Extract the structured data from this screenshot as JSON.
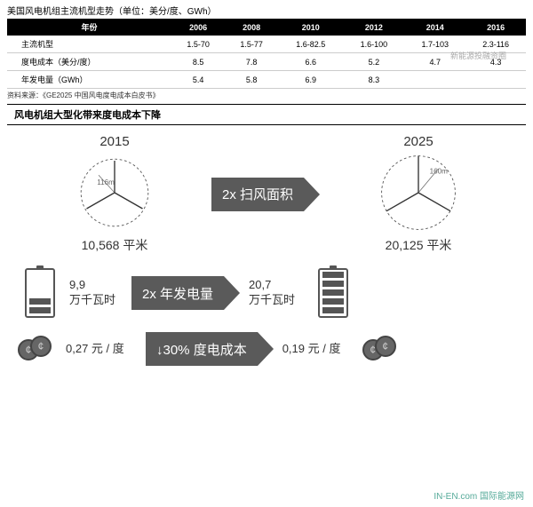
{
  "table": {
    "title": "美国风电机组主流机型走势（单位：美分/度、GWh）",
    "headers": [
      "年份",
      "2006",
      "2008",
      "2010",
      "2012",
      "2014",
      "2016"
    ],
    "rows": [
      [
        "主流机型",
        "1.5-70",
        "1.5-77",
        "1.6-82.5",
        "1.6-100",
        "1.7-103",
        "2.3-116"
      ],
      [
        "度电成本（美分/度）",
        "8.5",
        "7.8",
        "6.6",
        "5.2",
        "4.7",
        "4.3"
      ],
      [
        "年发电量（GWh）",
        "5.4",
        "5.8",
        "6.9",
        "8.3",
        "",
        ""
      ]
    ],
    "source": "资料来源：《GE2025 中国风电度电成本白皮书》",
    "header_bg": "#000000",
    "header_color": "#ffffff"
  },
  "subtitle": "风电机组大型化带来度电成本下降",
  "watermark": "新能源投融资圈",
  "logo": "IN-EN.com 国际能源网",
  "infographic": {
    "arrow_bg": "#5a5a5a",
    "text_color": "#333333",
    "row1": {
      "left_year": "2015",
      "left_radius": "116m",
      "left_area": "10,568 平米",
      "arrow": "2x 扫风面积",
      "right_year": "2025",
      "right_radius": "160m",
      "right_area": "20,125 平米",
      "circle_stroke": "#555555",
      "dash": "3,3"
    },
    "row2": {
      "left_val": "9,9",
      "left_unit": "万千瓦时",
      "arrow": "2x 年发电量",
      "right_val": "20,7",
      "right_unit": "万千瓦时",
      "left_bars": 2,
      "right_bars": 5
    },
    "row3": {
      "left_val": "0,27 元 / 度",
      "arrow": "↓30% 度电成本",
      "right_val": "0,19 元 / 度"
    }
  }
}
